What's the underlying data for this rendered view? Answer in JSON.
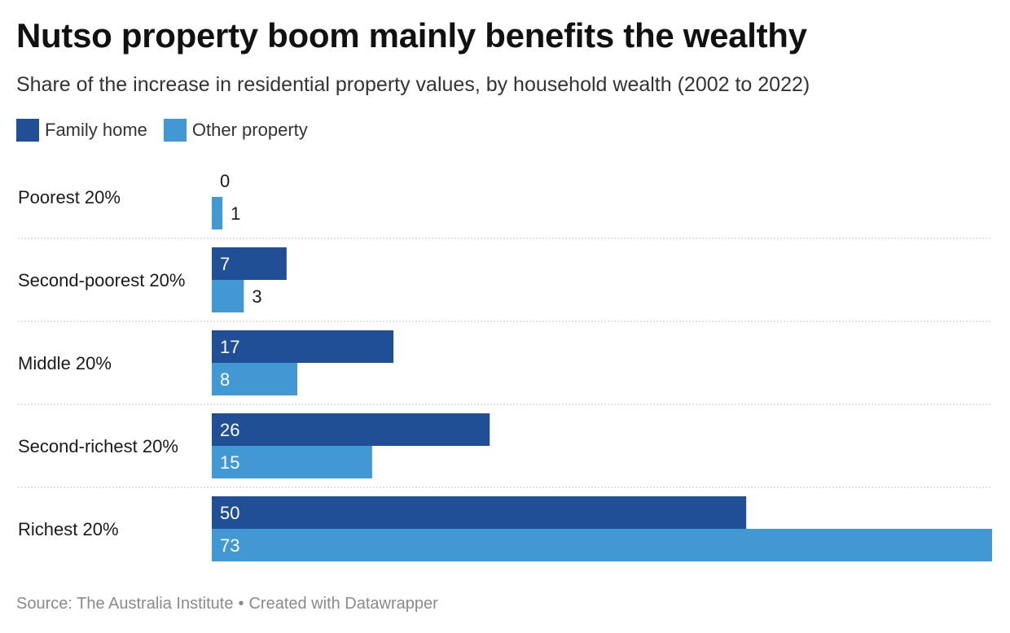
{
  "title": "Nutso property boom mainly benefits the wealthy",
  "subtitle": "Share of the increase in residential property values, by household wealth (2002 to 2022)",
  "legend": {
    "items": [
      {
        "label": "Family home",
        "color": "#214f96"
      },
      {
        "label": "Other property",
        "color": "#4298d3"
      }
    ]
  },
  "footer": {
    "source": "Source: The Australia Institute",
    "separator": "•",
    "credit": "Created with Datawrapper"
  },
  "chart_data": {
    "type": "bar",
    "orientation": "horizontal",
    "grouped": true,
    "categories": [
      "Poorest 20%",
      "Second-poorest 20%",
      "Middle 20%",
      "Second-richest 20%",
      "Richest 20%"
    ],
    "series": [
      {
        "name": "Family home",
        "values": [
          0,
          7,
          17,
          26,
          50
        ],
        "color": "#214f96"
      },
      {
        "name": "Other property",
        "values": [
          1,
          3,
          8,
          15,
          73
        ],
        "color": "#4298d3"
      }
    ],
    "xlim": [
      0,
      73
    ],
    "grid": false,
    "legend_position": "top-left",
    "data_labels": true
  }
}
